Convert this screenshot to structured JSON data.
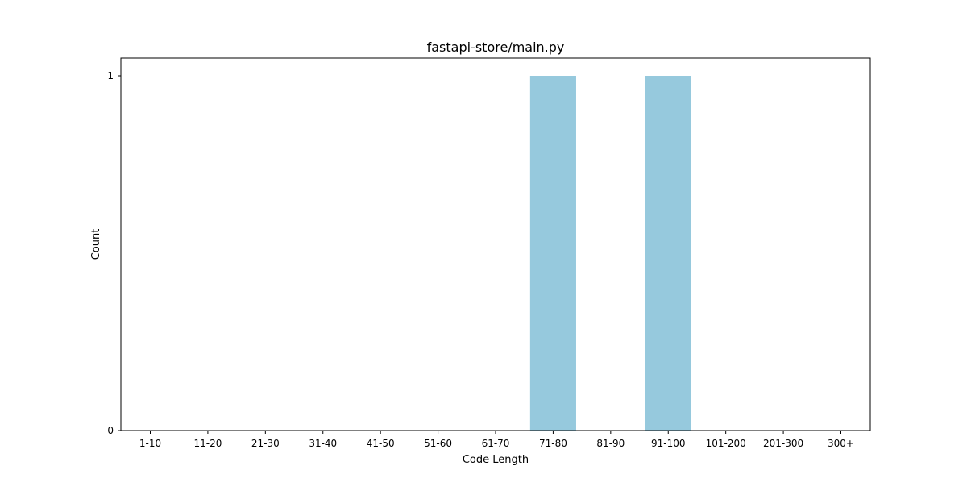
{
  "chart_data": {
    "type": "bar",
    "title": "fastapi-store/main.py",
    "xlabel": "Code Length",
    "ylabel": "Count",
    "categories": [
      "1-10",
      "11-20",
      "21-30",
      "31-40",
      "41-50",
      "51-60",
      "61-70",
      "71-80",
      "81-90",
      "91-100",
      "101-200",
      "201-300",
      "300+"
    ],
    "values": [
      0,
      0,
      0,
      0,
      0,
      0,
      0,
      1,
      0,
      1,
      0,
      0,
      0
    ],
    "yticks": [
      "0",
      "1"
    ],
    "ylim": [
      0,
      1.05
    ],
    "grid": false,
    "bar_color": "#96c9dd"
  }
}
